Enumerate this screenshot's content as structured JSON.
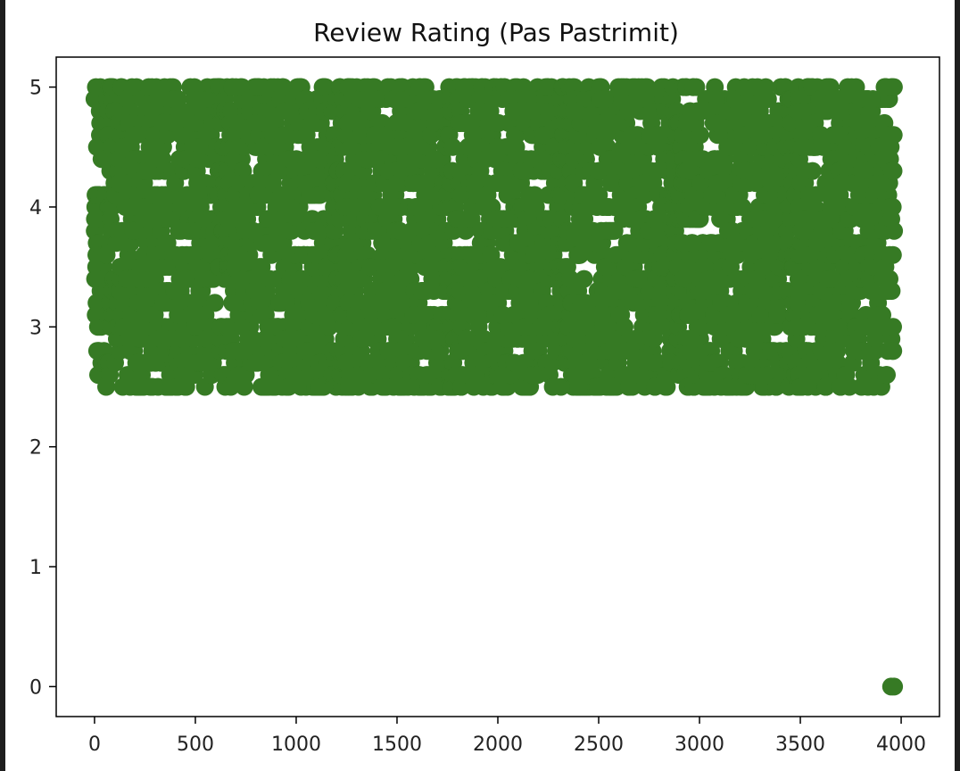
{
  "chart_data": {
    "type": "scatter",
    "title": "Review Rating (Pas Pastrimit)",
    "xlabel": "",
    "ylabel": "",
    "xlim": [
      -190,
      4190
    ],
    "ylim": [
      -0.25,
      5.25
    ],
    "xticks": [
      0,
      500,
      1000,
      1500,
      2000,
      2500,
      3000,
      3500,
      4000
    ],
    "yticks": [
      0,
      1,
      2,
      3,
      4,
      5
    ],
    "grid": false,
    "marker_color": "#367a24",
    "series": [
      {
        "x_range": [
          0,
          3965
        ],
        "y_values_present": [
          2.5,
          2.6,
          2.7,
          2.8,
          2.9,
          3.0,
          3.1,
          3.2,
          3.3,
          3.4,
          3.5,
          3.6,
          3.7,
          3.8,
          3.9,
          4.0,
          4.1,
          4.2,
          4.3,
          4.4,
          4.5,
          4.6,
          4.7,
          4.8,
          4.9,
          5.0
        ],
        "approx_point_count": 3970,
        "outliers": [
          {
            "x": 3950,
            "y": 0
          },
          {
            "x": 3965,
            "y": 0
          }
        ]
      }
    ]
  }
}
